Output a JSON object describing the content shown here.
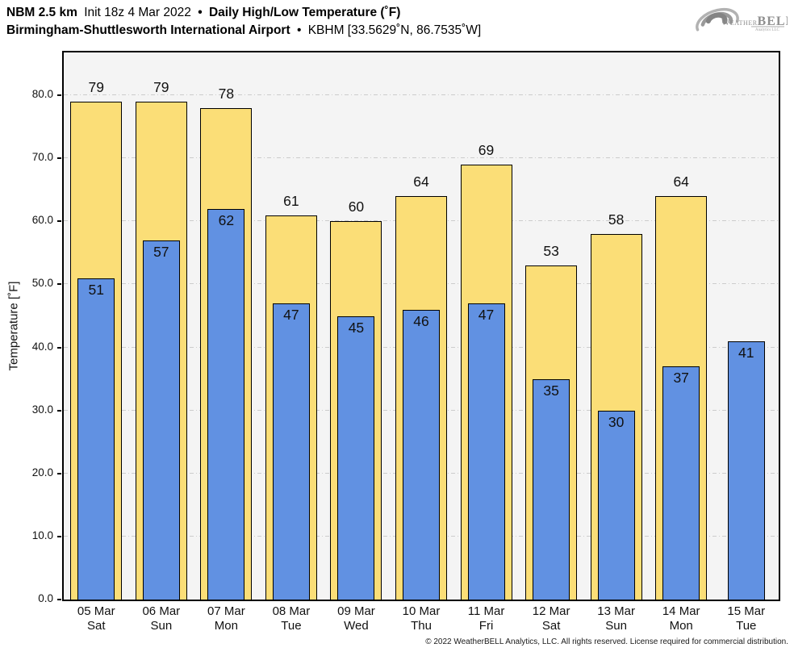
{
  "header": {
    "line1_model": "NBM 2.5 km",
    "line1_init": "Init 18z 4 Mar 2022",
    "line1_sep": "•",
    "line1_metric": "Daily High/Low Temperature (˚F)",
    "line2_station": "Birmingham-Shuttlesworth International Airport",
    "line2_sep": "•",
    "line2_id": "KBHM [33.5629˚N, 86.7535˚W]"
  },
  "logo": {
    "brand_weather": "Weather",
    "brand_bell": "BELL",
    "brand_sub": "Analytics LLC"
  },
  "chart_data": {
    "type": "bar",
    "title": "Daily High/Low Temperature (˚F)",
    "xlabel": "",
    "ylabel": "Temperature [˚F]",
    "ylim": [
      0,
      86.8
    ],
    "yticks": [
      0,
      10,
      20,
      30,
      40,
      50,
      60,
      70,
      80
    ],
    "ytick_labels": [
      "0.0",
      "10.0",
      "20.0",
      "30.0",
      "40.0",
      "50.0",
      "60.0",
      "70.0",
      "80.0"
    ],
    "grid": {
      "axis": "y",
      "style": "dash-dot",
      "color": "#cccccc"
    },
    "legend": "none",
    "plot_bg": "#f4f4f4",
    "categories": [
      {
        "date": "05 Mar",
        "day": "Sat"
      },
      {
        "date": "06 Mar",
        "day": "Sun"
      },
      {
        "date": "07 Mar",
        "day": "Mon"
      },
      {
        "date": "08 Mar",
        "day": "Tue"
      },
      {
        "date": "09 Mar",
        "day": "Wed"
      },
      {
        "date": "10 Mar",
        "day": "Thu"
      },
      {
        "date": "11 Mar",
        "day": "Fri"
      },
      {
        "date": "12 Mar",
        "day": "Sat"
      },
      {
        "date": "13 Mar",
        "day": "Sun"
      },
      {
        "date": "14 Mar",
        "day": "Mon"
      },
      {
        "date": "15 Mar",
        "day": "Tue"
      }
    ],
    "series": [
      {
        "name": "Daily High",
        "color": "#fbde77",
        "border": "#000000",
        "values": [
          79,
          79,
          78,
          61,
          60,
          64,
          69,
          53,
          58,
          64,
          null
        ]
      },
      {
        "name": "Daily Low",
        "color": "#6191e2",
        "border": "#000000",
        "values": [
          51,
          57,
          62,
          47,
          45,
          46,
          47,
          35,
          30,
          37,
          41
        ]
      }
    ]
  },
  "footer": {
    "copyright": "© 2022 WeatherBELL Analytics, LLC. All rights reserved. License required for commercial distribution."
  },
  "colors": {
    "high_bar": "#fbde77",
    "low_bar": "#6191e2",
    "bar_border": "#000000",
    "plot_bg": "#f4f4f4",
    "grid": "#cccccc",
    "logo_gray": "#8f8f8f"
  }
}
